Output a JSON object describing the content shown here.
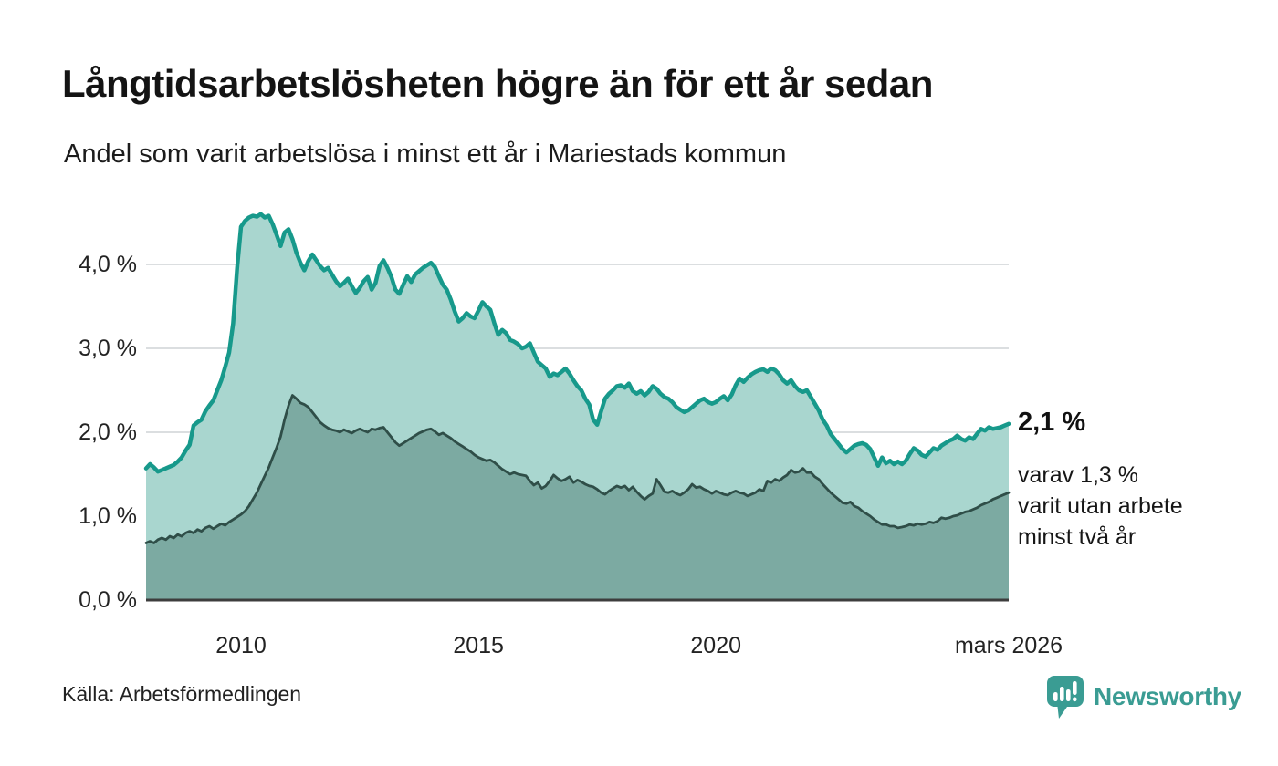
{
  "header": {
    "title": "Långtidsarbetslösheten högre än för ett år sedan",
    "subtitle": "Andel som varit arbetslösa i minst ett år i Mariestads kommun"
  },
  "annotations": {
    "latest_value_label": "2,1 %",
    "secondary_label": "varav 1,3 %\nvarit utan arbete\nminst två år"
  },
  "footer": {
    "source": "Källa: Arbetsförmedlingen",
    "brand": "Newsworthy",
    "brand_icon": "newsworthy-speech-bubble-bar-chart-icon",
    "brand_color": "#3a9c93"
  },
  "colors": {
    "accent_teal": "#17998b",
    "light_fill": "#a9d6cf",
    "dark_fill": "#7caaa2",
    "dark_line": "#2f4e48",
    "gridline": "rgba(145,155,160,0.33)",
    "axis_line": "#3d3d3d"
  },
  "chart_data": {
    "type": "area",
    "title": "Långtidsarbetslösheten högre än för ett år sedan",
    "subtitle": "Andel som varit arbetslösa i minst ett år i Mariestads kommun",
    "x_unit": "month",
    "x_start": "2008-01",
    "x_end": "2026-03",
    "ylim": [
      0,
      4.8
    ],
    "grid": true,
    "legend": "none",
    "yticks": [
      {
        "label": "0,0 %",
        "value": 0
      },
      {
        "label": "1,0 %",
        "value": 1
      },
      {
        "label": "2,0 %",
        "value": 2
      },
      {
        "label": "3,0 %",
        "value": 3
      },
      {
        "label": "4,0 %",
        "value": 4
      }
    ],
    "xticks": [
      {
        "label": "2010",
        "month_index": 24
      },
      {
        "label": "2015",
        "month_index": 84
      },
      {
        "label": "2020",
        "month_index": 144
      },
      {
        "label": "mars 2026",
        "month_index": 218
      }
    ],
    "series": [
      {
        "name": "Arbetslösa minst ett år",
        "latest_value": 2.1,
        "line_color": "#17998b",
        "fill_color": "#a9d6cf",
        "line_width": 4.5,
        "values": [
          1.57,
          1.62,
          1.58,
          1.53,
          1.55,
          1.57,
          1.59,
          1.61,
          1.65,
          1.7,
          1.78,
          1.85,
          2.08,
          2.12,
          2.15,
          2.25,
          2.32,
          2.38,
          2.5,
          2.62,
          2.78,
          2.95,
          3.3,
          3.95,
          4.45,
          4.52,
          4.56,
          4.58,
          4.57,
          4.6,
          4.56,
          4.58,
          4.48,
          4.35,
          4.22,
          4.38,
          4.42,
          4.3,
          4.14,
          4.02,
          3.93,
          4.04,
          4.12,
          4.05,
          3.98,
          3.93,
          3.96,
          3.88,
          3.8,
          3.74,
          3.78,
          3.83,
          3.74,
          3.66,
          3.72,
          3.8,
          3.85,
          3.7,
          3.78,
          3.98,
          4.05,
          3.96,
          3.85,
          3.7,
          3.65,
          3.76,
          3.86,
          3.79,
          3.88,
          3.92,
          3.96,
          3.99,
          4.02,
          3.97,
          3.86,
          3.76,
          3.7,
          3.58,
          3.44,
          3.32,
          3.36,
          3.42,
          3.38,
          3.36,
          3.45,
          3.55,
          3.5,
          3.46,
          3.3,
          3.16,
          3.22,
          3.18,
          3.1,
          3.08,
          3.05,
          3.0,
          3.02,
          3.06,
          2.95,
          2.84,
          2.8,
          2.76,
          2.66,
          2.7,
          2.68,
          2.72,
          2.76,
          2.7,
          2.62,
          2.55,
          2.5,
          2.4,
          2.33,
          2.15,
          2.09,
          2.25,
          2.4,
          2.46,
          2.5,
          2.55,
          2.56,
          2.53,
          2.58,
          2.49,
          2.46,
          2.49,
          2.44,
          2.48,
          2.55,
          2.52,
          2.46,
          2.42,
          2.4,
          2.36,
          2.3,
          2.27,
          2.24,
          2.26,
          2.3,
          2.34,
          2.38,
          2.4,
          2.36,
          2.34,
          2.36,
          2.4,
          2.43,
          2.38,
          2.45,
          2.56,
          2.64,
          2.6,
          2.65,
          2.69,
          2.72,
          2.74,
          2.75,
          2.72,
          2.76,
          2.74,
          2.69,
          2.62,
          2.58,
          2.62,
          2.55,
          2.5,
          2.48,
          2.5,
          2.42,
          2.34,
          2.26,
          2.15,
          2.08,
          1.98,
          1.92,
          1.86,
          1.8,
          1.76,
          1.8,
          1.84,
          1.86,
          1.87,
          1.85,
          1.8,
          1.7,
          1.6,
          1.7,
          1.63,
          1.66,
          1.62,
          1.65,
          1.62,
          1.66,
          1.74,
          1.81,
          1.78,
          1.73,
          1.71,
          1.76,
          1.81,
          1.79,
          1.84,
          1.87,
          1.9,
          1.92,
          1.96,
          1.92,
          1.9,
          1.94,
          1.92,
          1.98,
          2.04,
          2.02,
          2.06,
          2.04,
          2.05,
          2.06,
          2.08,
          2.1
        ]
      },
      {
        "name": "Arbetslösa minst två år",
        "latest_value": 1.3,
        "line_color": "#2f4e48",
        "fill_color": "#7caaa2",
        "line_width": 2.8,
        "values": [
          0.68,
          0.7,
          0.68,
          0.72,
          0.74,
          0.72,
          0.76,
          0.74,
          0.78,
          0.76,
          0.8,
          0.82,
          0.8,
          0.84,
          0.82,
          0.86,
          0.88,
          0.85,
          0.88,
          0.91,
          0.89,
          0.93,
          0.96,
          0.99,
          1.02,
          1.06,
          1.12,
          1.2,
          1.28,
          1.38,
          1.48,
          1.58,
          1.7,
          1.82,
          1.95,
          2.15,
          2.32,
          2.44,
          2.4,
          2.35,
          2.33,
          2.3,
          2.24,
          2.18,
          2.12,
          2.08,
          2.05,
          2.03,
          2.02,
          2.0,
          2.03,
          2.01,
          1.99,
          2.02,
          2.04,
          2.02,
          2.0,
          2.04,
          2.03,
          2.05,
          2.06,
          2.0,
          1.94,
          1.88,
          1.84,
          1.87,
          1.9,
          1.93,
          1.96,
          1.99,
          2.01,
          2.03,
          2.04,
          2.01,
          1.97,
          1.99,
          1.96,
          1.93,
          1.89,
          1.86,
          1.83,
          1.8,
          1.77,
          1.73,
          1.7,
          1.68,
          1.66,
          1.67,
          1.64,
          1.6,
          1.56,
          1.53,
          1.5,
          1.52,
          1.5,
          1.49,
          1.48,
          1.42,
          1.37,
          1.4,
          1.33,
          1.36,
          1.42,
          1.49,
          1.45,
          1.42,
          1.44,
          1.47,
          1.4,
          1.43,
          1.41,
          1.38,
          1.36,
          1.35,
          1.32,
          1.28,
          1.26,
          1.3,
          1.33,
          1.36,
          1.34,
          1.36,
          1.31,
          1.35,
          1.29,
          1.24,
          1.2,
          1.24,
          1.27,
          1.44,
          1.37,
          1.29,
          1.28,
          1.3,
          1.27,
          1.25,
          1.28,
          1.32,
          1.38,
          1.34,
          1.35,
          1.32,
          1.3,
          1.27,
          1.3,
          1.28,
          1.26,
          1.25,
          1.28,
          1.3,
          1.28,
          1.27,
          1.24,
          1.26,
          1.28,
          1.32,
          1.3,
          1.42,
          1.4,
          1.44,
          1.42,
          1.46,
          1.49,
          1.55,
          1.52,
          1.53,
          1.57,
          1.52,
          1.52,
          1.47,
          1.44,
          1.38,
          1.33,
          1.28,
          1.24,
          1.2,
          1.16,
          1.15,
          1.17,
          1.12,
          1.1,
          1.06,
          1.03,
          1.0,
          0.96,
          0.93,
          0.9,
          0.9,
          0.88,
          0.88,
          0.86,
          0.87,
          0.88,
          0.9,
          0.89,
          0.91,
          0.9,
          0.91,
          0.93,
          0.92,
          0.94,
          0.98,
          0.97,
          0.98,
          1.0,
          1.01,
          1.03,
          1.05,
          1.06,
          1.08,
          1.1,
          1.13,
          1.15,
          1.17,
          1.2,
          1.22,
          1.24,
          1.26,
          1.28
        ]
      }
    ]
  }
}
